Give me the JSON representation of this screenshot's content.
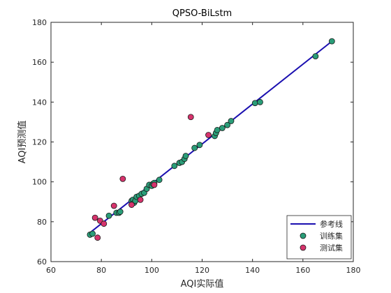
{
  "chart_data": {
    "type": "scatter",
    "title": "QPSO-BiLstm",
    "xlabel": "AQI实际值",
    "ylabel": "AQI预测值",
    "xlim": [
      60,
      180
    ],
    "ylim": [
      60,
      180
    ],
    "xticks": [
      60,
      80,
      100,
      120,
      140,
      160,
      180
    ],
    "yticks": [
      60,
      80,
      100,
      120,
      140,
      160,
      180
    ],
    "grid": false,
    "legend_position": "bottom-right",
    "series": [
      {
        "name": "参考线",
        "kind": "line",
        "color": "#1a0fb0",
        "points": [
          [
            75,
            74
          ],
          [
            172,
            171
          ]
        ]
      },
      {
        "name": "训练集",
        "kind": "scatter",
        "color": "#2a9d78",
        "points": [
          [
            75.5,
            73.5
          ],
          [
            76.5,
            74.0
          ],
          [
            83,
            83
          ],
          [
            86,
            84.5
          ],
          [
            87,
            84.5
          ],
          [
            87.5,
            85
          ],
          [
            92,
            90.5
          ],
          [
            92.5,
            91
          ],
          [
            93,
            89.5
          ],
          [
            93.5,
            90.5
          ],
          [
            94,
            92.5
          ],
          [
            95,
            93
          ],
          [
            96,
            94
          ],
          [
            97,
            94.5
          ],
          [
            98,
            96.5
          ],
          [
            99,
            98.5
          ],
          [
            100,
            98
          ],
          [
            100.5,
            99
          ],
          [
            101,
            99.5
          ],
          [
            103,
            101
          ],
          [
            109,
            108
          ],
          [
            111,
            109.5
          ],
          [
            112,
            110
          ],
          [
            113,
            111.5
          ],
          [
            113.5,
            113
          ],
          [
            117,
            117
          ],
          [
            119,
            118.5
          ],
          [
            125,
            123
          ],
          [
            125.5,
            124.5
          ],
          [
            126,
            126
          ],
          [
            128,
            127
          ],
          [
            130,
            128.5
          ],
          [
            131.5,
            130.5
          ],
          [
            141,
            139.5
          ],
          [
            143,
            140
          ],
          [
            165,
            163
          ],
          [
            171.5,
            170.5
          ]
        ]
      },
      {
        "name": "测试集",
        "kind": "scatter",
        "color": "#d6336c",
        "points": [
          [
            77.5,
            82
          ],
          [
            78.5,
            72
          ],
          [
            79.5,
            80.5
          ],
          [
            81,
            79
          ],
          [
            85,
            88
          ],
          [
            88.5,
            101.5
          ],
          [
            92,
            88.5
          ],
          [
            95.5,
            91
          ],
          [
            101,
            98.5
          ],
          [
            115.5,
            132.5
          ],
          [
            122.5,
            123.5
          ]
        ]
      }
    ]
  }
}
